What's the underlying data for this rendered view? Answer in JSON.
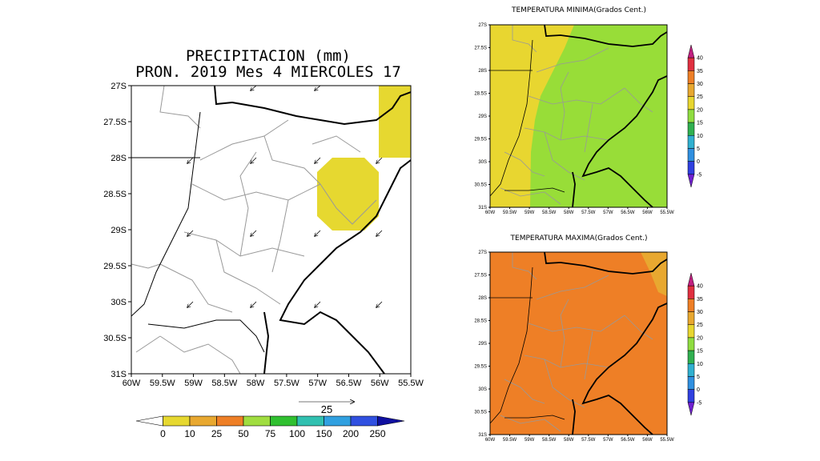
{
  "precip_panel": {
    "title_line1": "PRECIPITACION (mm)",
    "title_line2": "PRON. 2019 Mes 4 MIERCOLES 17",
    "lat_ticks": [
      "27S",
      "27.5S",
      "28S",
      "28.5S",
      "29S",
      "29.5S",
      "30S",
      "30.5S",
      "31S"
    ],
    "lon_ticks": [
      "60W",
      "59.5W",
      "59W",
      "58.5W",
      "58W",
      "57.5W",
      "57W",
      "56.5W",
      "56W",
      "55.5W"
    ],
    "vector_ref_label": "25",
    "colorbar_labels": [
      "0",
      "10",
      "25",
      "50",
      "75",
      "100",
      "150",
      "200",
      "250"
    ],
    "colorbar_colors": [
      "#ffffff",
      "#e6d830",
      "#e8a830",
      "#ee7f26",
      "#a0dd40",
      "#30c030",
      "#30c0b0",
      "#30a0e0",
      "#3050e0",
      "#1010a0"
    ]
  },
  "tmin_panel": {
    "title": "TEMPERATURA MINIMA(Grados Cent.)",
    "lat_ticks": [
      "27S",
      "27.5S",
      "28S",
      "28.5S",
      "29S",
      "29.5S",
      "30S",
      "30.5S",
      "31S"
    ],
    "lon_ticks": [
      "60W",
      "59.5W",
      "59W",
      "58.5W",
      "58W",
      "57.5W",
      "57W",
      "56.5W",
      "56W",
      "55.5W"
    ],
    "fill_colors": {
      "band_20_25": "#e8d630",
      "band_15_20": "#98dd38"
    }
  },
  "tmax_panel": {
    "title": "TEMPERATURA MAXIMA(Grados Cent.)",
    "lat_ticks": [
      "27S",
      "27.5S",
      "28S",
      "28.5S",
      "29S",
      "29.5S",
      "30S",
      "30.5S",
      "31S"
    ],
    "lon_ticks": [
      "60W",
      "59.5W",
      "59W",
      "58.5W",
      "58W",
      "57.5W",
      "57W",
      "56.5W",
      "56W",
      "55.5W"
    ],
    "fill_colors": {
      "band_30_35": "#ee7f26",
      "band_25_30": "#e8a830"
    }
  },
  "temp_colorbar": {
    "labels": [
      "-5",
      "0",
      "5",
      "10",
      "15",
      "20",
      "25",
      "30",
      "35",
      "40"
    ],
    "colors": [
      "#7020d0",
      "#3040e0",
      "#3090e0",
      "#30b0d0",
      "#30b050",
      "#90dd40",
      "#e8d630",
      "#e8a830",
      "#ee7f26",
      "#e03040",
      "#c02080"
    ]
  }
}
